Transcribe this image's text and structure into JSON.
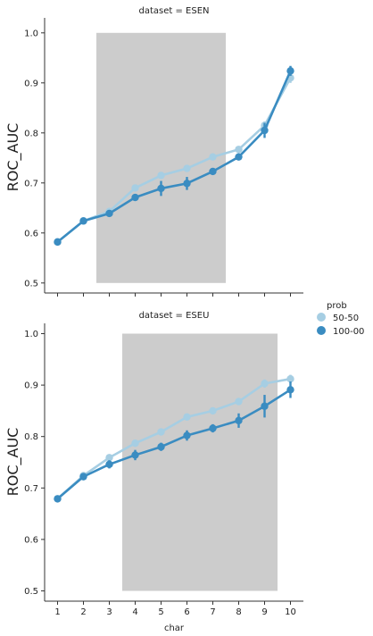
{
  "chart_data": [
    {
      "type": "line",
      "title": "dataset = ESEN",
      "xlabel": "",
      "ylabel": "ROC_AUC",
      "x": [
        1,
        2,
        3,
        4,
        5,
        6,
        7,
        8,
        9,
        10
      ],
      "ylim": [
        0.48,
        1.03
      ],
      "yticks": [
        "0.5",
        "0.6",
        "0.7",
        "0.8",
        "0.9",
        "1.0"
      ],
      "shaded_region": {
        "x": [
          2.5,
          7.5
        ],
        "y": [
          0.5,
          1.0
        ],
        "color": "#cccccc"
      },
      "series": [
        {
          "name": "50-50",
          "color": "#a6cee3",
          "values": [
            0.582,
            0.624,
            0.643,
            0.69,
            0.715,
            0.729,
            0.752,
            0.767,
            0.815,
            0.91
          ],
          "err": [
            0.003,
            0.003,
            0.005,
            0.006,
            0.007,
            0.006,
            0.006,
            0.006,
            0.008,
            0.01
          ]
        },
        {
          "name": "100-00",
          "color": "#3a8cc1",
          "values": [
            0.582,
            0.624,
            0.639,
            0.671,
            0.689,
            0.699,
            0.723,
            0.752,
            0.805,
            0.924
          ],
          "err": [
            0.003,
            0.003,
            0.005,
            0.006,
            0.015,
            0.013,
            0.006,
            0.006,
            0.015,
            0.01
          ]
        }
      ]
    },
    {
      "type": "line",
      "title": "dataset = ESEU",
      "xlabel": "char",
      "ylabel": "ROC_AUC",
      "x": [
        1,
        2,
        3,
        4,
        5,
        6,
        7,
        8,
        9,
        10
      ],
      "ylim": [
        0.48,
        1.02
      ],
      "yticks": [
        "0.5",
        "0.6",
        "0.7",
        "0.8",
        "0.9",
        "1.0"
      ],
      "xticks": [
        "1",
        "2",
        "3",
        "4",
        "5",
        "6",
        "7",
        "8",
        "9",
        "10"
      ],
      "shaded_region": {
        "x": [
          3.5,
          9.5
        ],
        "y": [
          0.5,
          1.0
        ],
        "color": "#cccccc"
      },
      "series": [
        {
          "name": "50-50",
          "color": "#a6cee3",
          "values": [
            0.679,
            0.724,
            0.759,
            0.787,
            0.809,
            0.838,
            0.85,
            0.868,
            0.903,
            0.912
          ],
          "err": [
            0.003,
            0.004,
            0.005,
            0.006,
            0.006,
            0.006,
            0.006,
            0.006,
            0.008,
            0.008
          ]
        },
        {
          "name": "100-00",
          "color": "#3a8cc1",
          "values": [
            0.679,
            0.722,
            0.746,
            0.764,
            0.78,
            0.802,
            0.816,
            0.831,
            0.859,
            0.891
          ],
          "err": [
            0.003,
            0.004,
            0.008,
            0.01,
            0.008,
            0.01,
            0.008,
            0.014,
            0.022,
            0.016
          ]
        }
      ]
    }
  ],
  "legend": {
    "title": "prob",
    "placement": "right",
    "entries": [
      {
        "label": "50-50",
        "color": "#a6cee3"
      },
      {
        "label": "100-00",
        "color": "#3a8cc1"
      }
    ]
  }
}
